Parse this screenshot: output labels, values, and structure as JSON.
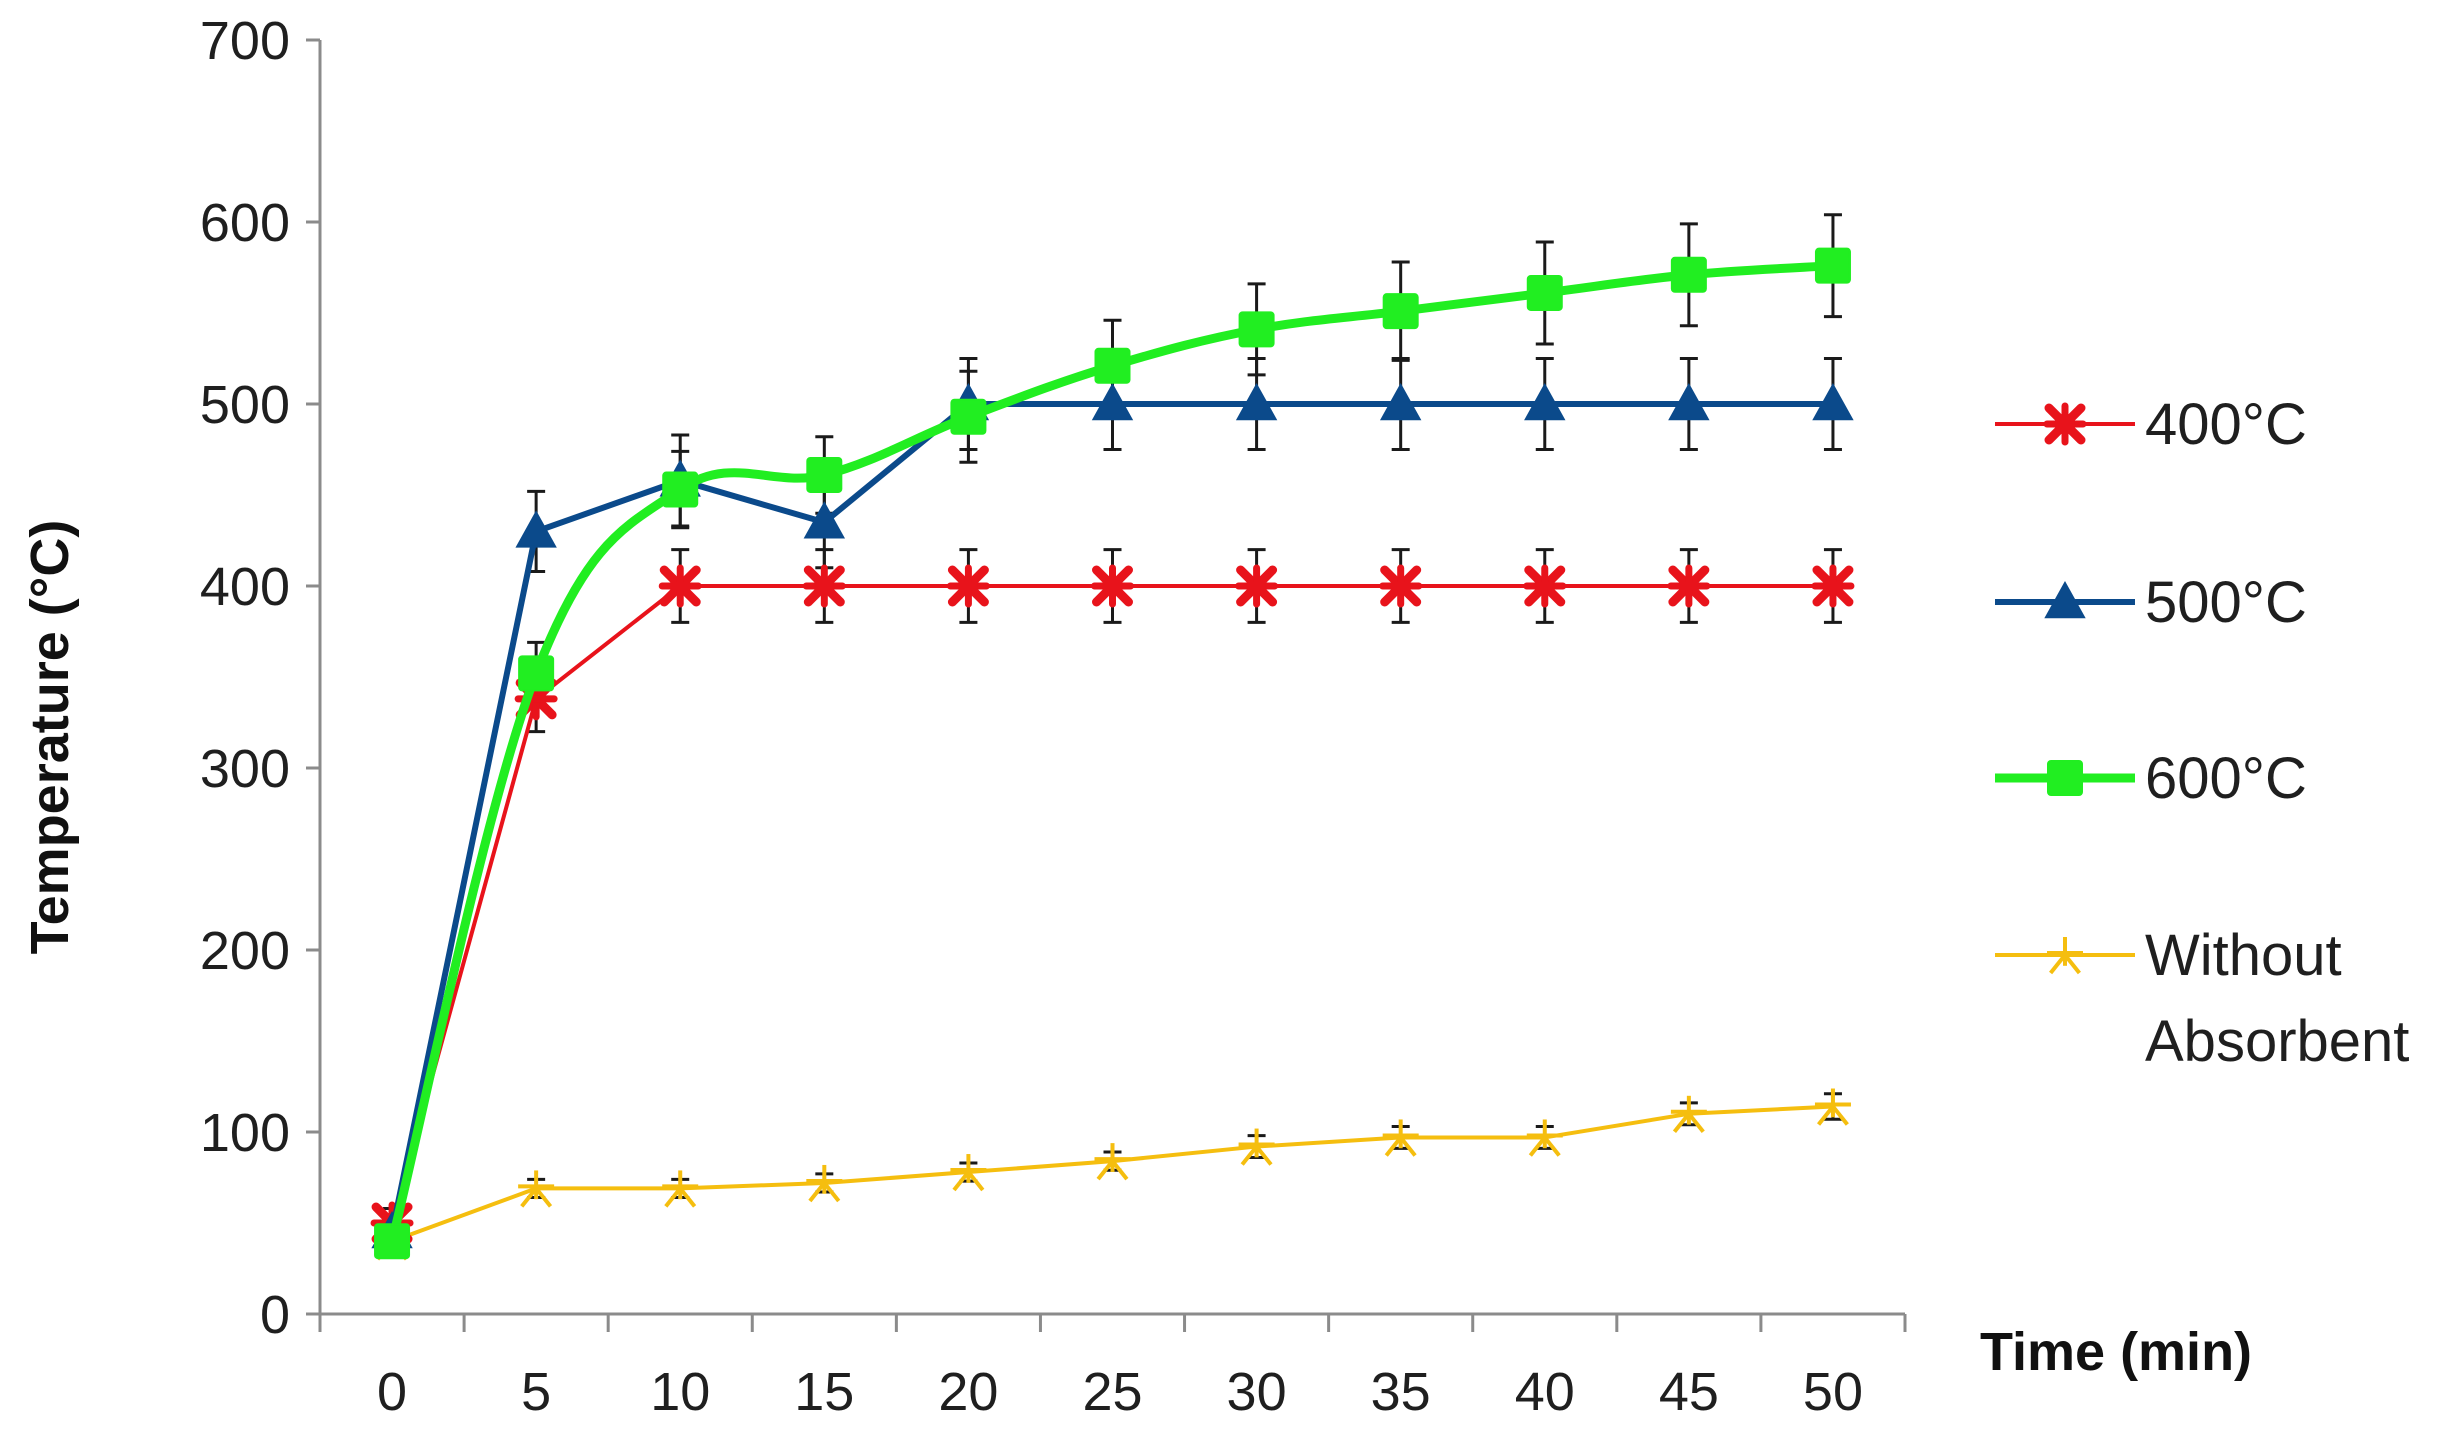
{
  "chart_data": {
    "type": "line",
    "title": "",
    "xlabel": "Time (min)",
    "ylabel": "Temperature (°C)",
    "x": [
      0,
      5,
      10,
      15,
      20,
      25,
      30,
      35,
      40,
      45,
      50
    ],
    "ylim": [
      0,
      700
    ],
    "yticks": [
      0,
      100,
      200,
      300,
      400,
      500,
      600,
      700
    ],
    "grid": false,
    "legend_position": "right",
    "series": [
      {
        "name": "400°C",
        "color": "#e8131b",
        "marker": "x-star",
        "smooth": false,
        "values": [
          50,
          338,
          400,
          400,
          400,
          400,
          400,
          400,
          400,
          400,
          400
        ],
        "errors": [
          8,
          18,
          20,
          20,
          20,
          20,
          20,
          20,
          20,
          20,
          20
        ]
      },
      {
        "name": "500°C",
        "color": "#0b4a8b",
        "marker": "triangle",
        "smooth": false,
        "values": [
          45,
          430,
          458,
          435,
          500,
          500,
          500,
          500,
          500,
          500,
          500
        ],
        "errors": [
          8,
          22,
          25,
          25,
          25,
          25,
          25,
          25,
          25,
          25,
          25
        ]
      },
      {
        "name": "600°C",
        "color": "#21ee21",
        "marker": "square",
        "smooth": true,
        "values": [
          40,
          352,
          453,
          461,
          493,
          521,
          541,
          551,
          561,
          571,
          576
        ],
        "errors": [
          8,
          17,
          21,
          21,
          25,
          25,
          25,
          27,
          28,
          28,
          28
        ]
      },
      {
        "name": "Without Absorbent",
        "color": "#f5be0f",
        "marker": "star",
        "smooth": false,
        "values": [
          40,
          69,
          69,
          72,
          78,
          84,
          92,
          97,
          97,
          110,
          114
        ],
        "errors": [
          3,
          5,
          5,
          5,
          5,
          5,
          6,
          6,
          6,
          6,
          7
        ]
      }
    ]
  }
}
